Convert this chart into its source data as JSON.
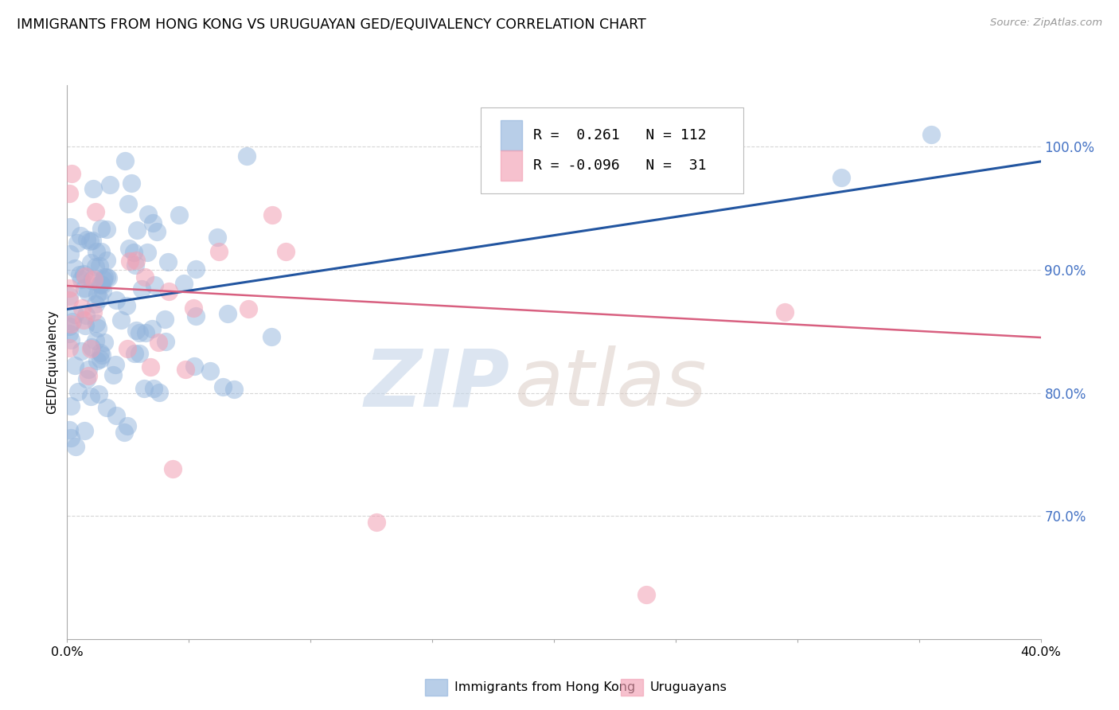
{
  "title": "IMMIGRANTS FROM HONG KONG VS URUGUAYAN GED/EQUIVALENCY CORRELATION CHART",
  "source": "Source: ZipAtlas.com",
  "ylabel": "GED/Equivalency",
  "xlim": [
    0.0,
    0.4
  ],
  "ylim": [
    0.6,
    1.05
  ],
  "yticks": [
    0.7,
    0.8,
    0.9,
    1.0
  ],
  "ytick_labels": [
    "70.0%",
    "80.0%",
    "90.0%",
    "100.0%"
  ],
  "ytick_color": "#4472c4",
  "blue_color": "#92B4DC",
  "pink_color": "#F2A0B4",
  "blue_line_color": "#2255A0",
  "pink_line_color": "#D86080",
  "legend_blue_R": "0.261",
  "legend_blue_N": "112",
  "legend_pink_R": "-0.096",
  "legend_pink_N": "31",
  "legend_label_blue": "Immigrants from Hong Kong",
  "legend_label_pink": "Uruguayans",
  "watermark_zip": "ZIP",
  "watermark_atlas": "atlas",
  "blue_trendline_x": [
    0.0,
    0.4
  ],
  "blue_trendline_y": [
    0.868,
    0.988
  ],
  "pink_trendline_x": [
    0.0,
    0.4
  ],
  "pink_trendline_y": [
    0.887,
    0.845
  ],
  "random_seed_blue": 7,
  "random_seed_pink": 13
}
